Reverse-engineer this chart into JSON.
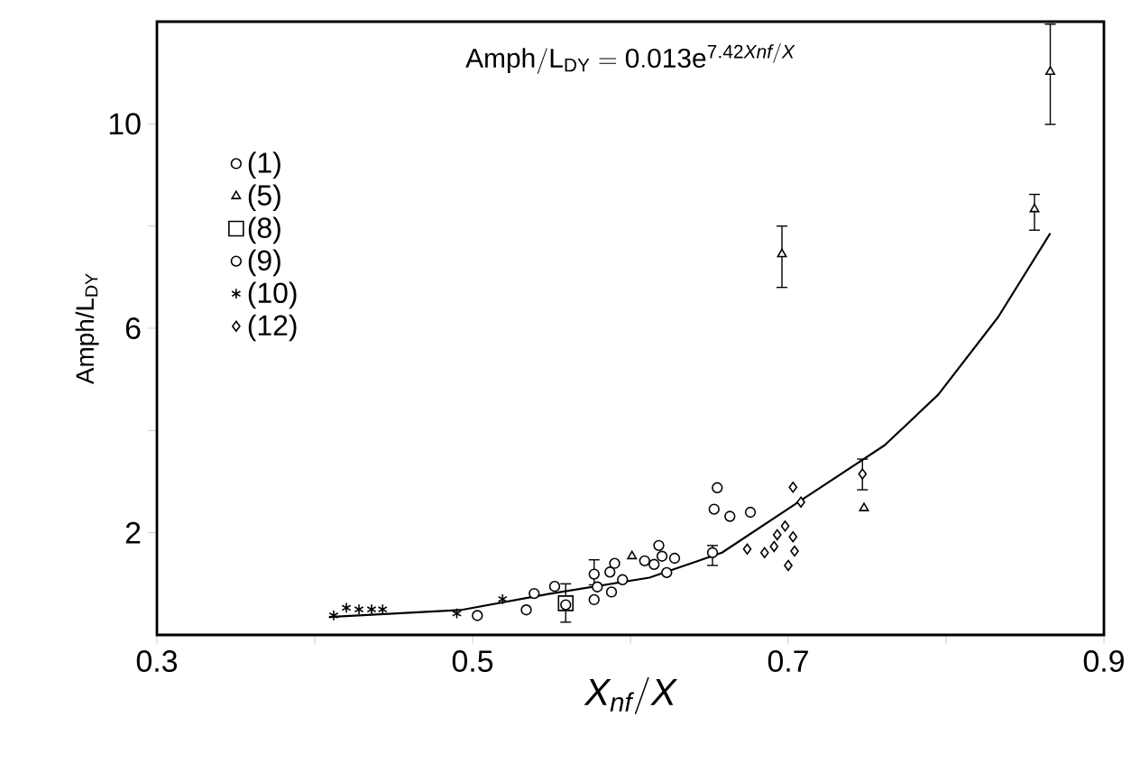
{
  "chart_data": {
    "type": "scatter",
    "xlabel": "X_{nf}/X",
    "ylabel": "Amph/L$_{DY}$",
    "annotations": [
      "\\mathrm{Amph/L_{DY}} = 0.013\\mathrm{e}^{7.42\\mathit{Xnf}/\\mathit{X}}"
    ],
    "xlim": [
      0.3,
      0.9
    ],
    "ylim": [
      0,
      12
    ],
    "xticks": [
      0.3,
      {
        "value": 0.4,
        "label": null
      },
      0.5,
      {
        "value": 0.6,
        "label": null
      },
      0.7,
      {
        "value": 0.8,
        "label": null
      },
      0.9
    ],
    "yticks": [
      2,
      {
        "value": 4,
        "label": null
      },
      6,
      {
        "value": 8,
        "label": null
      },
      10
    ],
    "legend": "top left",
    "grid": false,
    "series": [
      {
        "name": "(1)",
        "color": "#000000",
        "marker": "circle",
        "x": [
          0.503,
          0.539,
          0.552,
          0.577,
          0.579,
          0.587,
          0.588,
          0.59,
          0.595,
          0.609,
          0.615,
          0.618,
          0.62,
          0.623,
          0.628,
          0.652,
          0.653,
          0.655,
          0.663,
          0.676
        ],
        "values": [
          0.38,
          0.81,
          0.95,
          1.19,
          0.94,
          1.23,
          0.84,
          1.4,
          1.08,
          1.45,
          1.38,
          1.75,
          1.54,
          1.22,
          1.5,
          1.61,
          2.46,
          2.88,
          2.32,
          2.4
        ],
        "errors": [
          null,
          null,
          null,
          [
            0.98,
            1.47
          ],
          null,
          null,
          null,
          null,
          null,
          null,
          null,
          null,
          null,
          null,
          null,
          [
            1.36,
            1.75
          ],
          null,
          null,
          null,
          null
        ]
      },
      {
        "name": "(5)",
        "color": "#000000",
        "marker": "triangle",
        "x": [
          0.601,
          0.696,
          0.748,
          0.856,
          0.866
        ],
        "values": [
          1.54,
          7.45,
          2.48,
          8.33,
          11.02
        ],
        "errors": [
          null,
          [
            6.8,
            8.0
          ],
          null,
          [
            7.92,
            8.62
          ],
          [
            9.99,
            11.95
          ]
        ]
      },
      {
        "name": "(8)",
        "color": "#000000",
        "marker": "square",
        "x": [
          0.559
        ],
        "values": [
          0.62
        ],
        "errors": [
          [
            0.25,
            1.0
          ]
        ]
      },
      {
        "name": "(9)",
        "color": "#000000",
        "marker": "circle",
        "x": [
          0.534,
          0.559,
          0.577
        ],
        "values": [
          0.49,
          0.59,
          0.69
        ]
      },
      {
        "name": "(10)",
        "color": "#000000",
        "marker": "cross",
        "x": [
          0.412,
          0.42,
          0.428,
          0.436,
          0.443,
          0.49,
          0.519
        ],
        "values": [
          0.38,
          0.53,
          0.5,
          0.5,
          0.5,
          0.42,
          0.7
        ]
      },
      {
        "name": "(12)",
        "color": "#000000",
        "marker": "diamond",
        "x": [
          0.674,
          0.685,
          0.691,
          0.693,
          0.698,
          0.703,
          0.704,
          0.7,
          0.703,
          0.708,
          0.747
        ],
        "values": [
          1.68,
          1.61,
          1.73,
          1.96,
          2.13,
          1.92,
          1.64,
          1.36,
          2.89,
          2.6,
          3.15
        ],
        "errors": [
          null,
          null,
          null,
          null,
          null,
          null,
          null,
          null,
          null,
          null,
          [
            2.84,
            3.44
          ]
        ]
      },
      {
        "type": "line",
        "color": "#000000",
        "marker": "none",
        "x": [
          0.409,
          0.493,
          0.548,
          0.612,
          0.658,
          0.703,
          0.761,
          0.795,
          0.833,
          0.866
        ],
        "values": [
          0.35,
          0.49,
          0.8,
          1.12,
          1.61,
          2.53,
          3.71,
          4.7,
          6.22,
          7.86
        ]
      }
    ]
  }
}
